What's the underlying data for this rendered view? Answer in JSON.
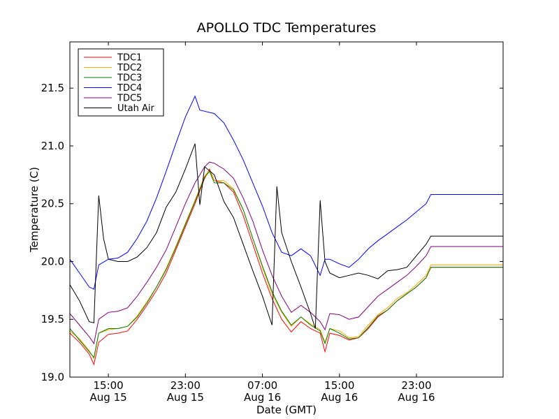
{
  "chart_data": {
    "type": "line",
    "title": "APOLLO TDC Temperatures",
    "xlabel": "Date (GMT)",
    "ylabel": "Temperature (C)",
    "x_unit": "hours since Aug 15 11:00 GMT",
    "xlim": [
      0,
      45
    ],
    "ylim": [
      19.0,
      21.9
    ],
    "yticks": [
      19.0,
      19.5,
      20.0,
      20.5,
      21.0,
      21.5
    ],
    "ytick_labels": [
      "19.0",
      "19.5",
      "20.0",
      "20.5",
      "21.0",
      "21.5"
    ],
    "xticks": [
      {
        "x": 4,
        "time": "15:00",
        "date": "Aug 15"
      },
      {
        "x": 12,
        "time": "23:00",
        "date": "Aug 15"
      },
      {
        "x": 20,
        "time": "07:00",
        "date": "Aug 16"
      },
      {
        "x": 28,
        "time": "15:00",
        "date": "Aug 16"
      },
      {
        "x": 36,
        "time": "23:00",
        "date": "Aug 16"
      }
    ],
    "legend_position": "top-left",
    "series": [
      {
        "name": "TDC1",
        "color": "#ff0000",
        "points": [
          [
            0,
            19.38
          ],
          [
            1,
            19.3
          ],
          [
            2,
            19.2
          ],
          [
            2.5,
            19.11
          ],
          [
            3,
            19.3
          ],
          [
            4,
            19.37
          ],
          [
            5,
            19.38
          ],
          [
            6,
            19.4
          ],
          [
            7,
            19.5
          ],
          [
            8,
            19.62
          ],
          [
            9,
            19.75
          ],
          [
            10,
            19.9
          ],
          [
            11,
            20.1
          ],
          [
            12,
            20.3
          ],
          [
            13,
            20.5
          ],
          [
            14,
            20.72
          ],
          [
            14.5,
            20.8
          ],
          [
            15,
            20.7
          ],
          [
            16,
            20.68
          ],
          [
            17,
            20.6
          ],
          [
            18,
            20.4
          ],
          [
            19,
            20.15
          ],
          [
            20,
            19.9
          ],
          [
            21,
            19.68
          ],
          [
            22,
            19.5
          ],
          [
            23,
            19.39
          ],
          [
            24,
            19.48
          ],
          [
            25,
            19.42
          ],
          [
            26,
            19.38
          ],
          [
            26.5,
            19.22
          ],
          [
            27,
            19.38
          ],
          [
            28,
            19.36
          ],
          [
            29,
            19.32
          ],
          [
            30,
            19.34
          ],
          [
            31,
            19.42
          ],
          [
            32,
            19.52
          ],
          [
            33,
            19.58
          ],
          [
            34,
            19.66
          ],
          [
            35,
            19.72
          ],
          [
            36,
            19.78
          ],
          [
            37,
            19.86
          ],
          [
            37.5,
            19.95
          ],
          [
            45,
            19.95
          ]
        ]
      },
      {
        "name": "TDC2",
        "color": "#ffa500",
        "points": [
          [
            0,
            19.4
          ],
          [
            1,
            19.33
          ],
          [
            2,
            19.23
          ],
          [
            2.5,
            19.16
          ],
          [
            3,
            19.38
          ],
          [
            4,
            19.41
          ],
          [
            5,
            19.42
          ],
          [
            6,
            19.44
          ],
          [
            7,
            19.53
          ],
          [
            8,
            19.65
          ],
          [
            9,
            19.78
          ],
          [
            10,
            19.94
          ],
          [
            11,
            20.13
          ],
          [
            12,
            20.33
          ],
          [
            13,
            20.53
          ],
          [
            14,
            20.74
          ],
          [
            14.5,
            20.79
          ],
          [
            15,
            20.7
          ],
          [
            16,
            20.7
          ],
          [
            17,
            20.63
          ],
          [
            18,
            20.45
          ],
          [
            19,
            20.2
          ],
          [
            20,
            19.95
          ],
          [
            21,
            19.72
          ],
          [
            22,
            19.56
          ],
          [
            23,
            19.44
          ],
          [
            24,
            19.52
          ],
          [
            25,
            19.46
          ],
          [
            26,
            19.41
          ],
          [
            26.5,
            19.3
          ],
          [
            27,
            19.42
          ],
          [
            28,
            19.4
          ],
          [
            29,
            19.34
          ],
          [
            30,
            19.35
          ],
          [
            31,
            19.45
          ],
          [
            32,
            19.54
          ],
          [
            33,
            19.6
          ],
          [
            34,
            19.68
          ],
          [
            35,
            19.73
          ],
          [
            36,
            19.8
          ],
          [
            37,
            19.88
          ],
          [
            37.5,
            19.97
          ],
          [
            45,
            19.97
          ]
        ]
      },
      {
        "name": "TDC3",
        "color": "#008000",
        "points": [
          [
            0,
            19.42
          ],
          [
            1,
            19.32
          ],
          [
            2,
            19.22
          ],
          [
            2.5,
            19.17
          ],
          [
            3,
            19.38
          ],
          [
            4,
            19.42
          ],
          [
            5,
            19.42
          ],
          [
            6,
            19.44
          ],
          [
            7,
            19.52
          ],
          [
            8,
            19.64
          ],
          [
            9,
            19.78
          ],
          [
            10,
            19.93
          ],
          [
            11,
            20.12
          ],
          [
            12,
            20.32
          ],
          [
            13,
            20.52
          ],
          [
            14,
            20.73
          ],
          [
            14.5,
            20.78
          ],
          [
            15,
            20.68
          ],
          [
            16,
            20.68
          ],
          [
            17,
            20.62
          ],
          [
            18,
            20.45
          ],
          [
            19,
            20.2
          ],
          [
            20,
            19.96
          ],
          [
            21,
            19.74
          ],
          [
            22,
            19.57
          ],
          [
            23,
            19.45
          ],
          [
            24,
            19.52
          ],
          [
            25,
            19.45
          ],
          [
            26,
            19.4
          ],
          [
            26.5,
            19.29
          ],
          [
            27,
            19.42
          ],
          [
            28,
            19.38
          ],
          [
            29,
            19.33
          ],
          [
            30,
            19.34
          ],
          [
            31,
            19.43
          ],
          [
            32,
            19.53
          ],
          [
            33,
            19.58
          ],
          [
            34,
            19.66
          ],
          [
            35,
            19.72
          ],
          [
            36,
            19.78
          ],
          [
            37,
            19.86
          ],
          [
            37.5,
            19.95
          ],
          [
            45,
            19.95
          ]
        ]
      },
      {
        "name": "TDC4",
        "color": "#0000ff",
        "points": [
          [
            0,
            20.02
          ],
          [
            1,
            19.9
          ],
          [
            2,
            19.78
          ],
          [
            2.5,
            19.76
          ],
          [
            3,
            19.97
          ],
          [
            4,
            20.02
          ],
          [
            5,
            20.03
          ],
          [
            6,
            20.08
          ],
          [
            7,
            20.2
          ],
          [
            8,
            20.35
          ],
          [
            9,
            20.55
          ],
          [
            10,
            20.78
          ],
          [
            11,
            21.02
          ],
          [
            12,
            21.25
          ],
          [
            13,
            21.43
          ],
          [
            13.5,
            21.31
          ],
          [
            14,
            21.3
          ],
          [
            15,
            21.28
          ],
          [
            16,
            21.2
          ],
          [
            17,
            21.05
          ],
          [
            18,
            20.88
          ],
          [
            19,
            20.68
          ],
          [
            20,
            20.48
          ],
          [
            21,
            20.25
          ],
          [
            22,
            20.08
          ],
          [
            23,
            20.05
          ],
          [
            24,
            20.11
          ],
          [
            25,
            20.05
          ],
          [
            26,
            19.88
          ],
          [
            26.5,
            20.02
          ],
          [
            27,
            20.02
          ],
          [
            28,
            19.98
          ],
          [
            29,
            19.95
          ],
          [
            30,
            20.02
          ],
          [
            31,
            20.11
          ],
          [
            32,
            20.18
          ],
          [
            33,
            20.24
          ],
          [
            34,
            20.3
          ],
          [
            35,
            20.36
          ],
          [
            36,
            20.43
          ],
          [
            37,
            20.5
          ],
          [
            37.5,
            20.58
          ],
          [
            45,
            20.58
          ]
        ]
      },
      {
        "name": "TDC5",
        "color": "#800080",
        "points": [
          [
            0,
            19.55
          ],
          [
            1,
            19.45
          ],
          [
            2,
            19.35
          ],
          [
            2.5,
            19.29
          ],
          [
            3,
            19.5
          ],
          [
            4,
            19.56
          ],
          [
            5,
            19.57
          ],
          [
            6,
            19.6
          ],
          [
            7,
            19.7
          ],
          [
            8,
            19.82
          ],
          [
            9,
            19.95
          ],
          [
            10,
            20.1
          ],
          [
            11,
            20.3
          ],
          [
            12,
            20.5
          ],
          [
            13,
            20.68
          ],
          [
            14,
            20.82
          ],
          [
            14.5,
            20.86
          ],
          [
            15,
            20.85
          ],
          [
            16,
            20.8
          ],
          [
            17,
            20.72
          ],
          [
            18,
            20.55
          ],
          [
            19,
            20.35
          ],
          [
            20,
            20.1
          ],
          [
            21,
            19.88
          ],
          [
            22,
            19.7
          ],
          [
            23,
            19.56
          ],
          [
            24,
            19.62
          ],
          [
            25,
            19.56
          ],
          [
            26,
            19.48
          ],
          [
            26.5,
            19.41
          ],
          [
            27,
            19.55
          ],
          [
            28,
            19.54
          ],
          [
            29,
            19.5
          ],
          [
            30,
            19.52
          ],
          [
            31,
            19.61
          ],
          [
            32,
            19.7
          ],
          [
            33,
            19.76
          ],
          [
            34,
            19.82
          ],
          [
            35,
            19.88
          ],
          [
            36,
            19.96
          ],
          [
            37,
            20.05
          ],
          [
            37.5,
            20.13
          ],
          [
            45,
            20.13
          ]
        ]
      },
      {
        "name": "Utah Air",
        "color": "#000000",
        "points": [
          [
            0,
            19.8
          ],
          [
            1,
            19.66
          ],
          [
            2,
            19.48
          ],
          [
            2.5,
            19.47
          ],
          [
            3,
            20.57
          ],
          [
            3.5,
            20.2
          ],
          [
            4,
            20.02
          ],
          [
            5,
            20.0
          ],
          [
            6,
            20.0
          ],
          [
            7,
            20.04
          ],
          [
            8,
            20.12
          ],
          [
            9,
            20.25
          ],
          [
            10,
            20.47
          ],
          [
            11,
            20.6
          ],
          [
            12,
            20.8
          ],
          [
            13,
            21.02
          ],
          [
            13.5,
            20.49
          ],
          [
            14,
            20.82
          ],
          [
            15,
            20.75
          ],
          [
            16,
            20.52
          ],
          [
            17,
            20.38
          ],
          [
            18,
            20.15
          ],
          [
            19,
            19.92
          ],
          [
            20,
            19.7
          ],
          [
            21,
            19.45
          ],
          [
            21.5,
            20.65
          ],
          [
            22,
            20.25
          ],
          [
            23,
            20.0
          ],
          [
            24,
            19.78
          ],
          [
            25,
            19.55
          ],
          [
            25.5,
            19.42
          ],
          [
            26,
            20.53
          ],
          [
            26.5,
            20.0
          ],
          [
            27,
            19.9
          ],
          [
            28,
            19.86
          ],
          [
            29,
            19.88
          ],
          [
            30,
            19.9
          ],
          [
            31,
            19.88
          ],
          [
            32,
            19.85
          ],
          [
            33,
            19.92
          ],
          [
            34,
            19.93
          ],
          [
            35,
            19.95
          ],
          [
            36,
            20.05
          ],
          [
            37,
            20.15
          ],
          [
            37.5,
            20.22
          ],
          [
            45,
            20.22
          ]
        ]
      }
    ]
  }
}
